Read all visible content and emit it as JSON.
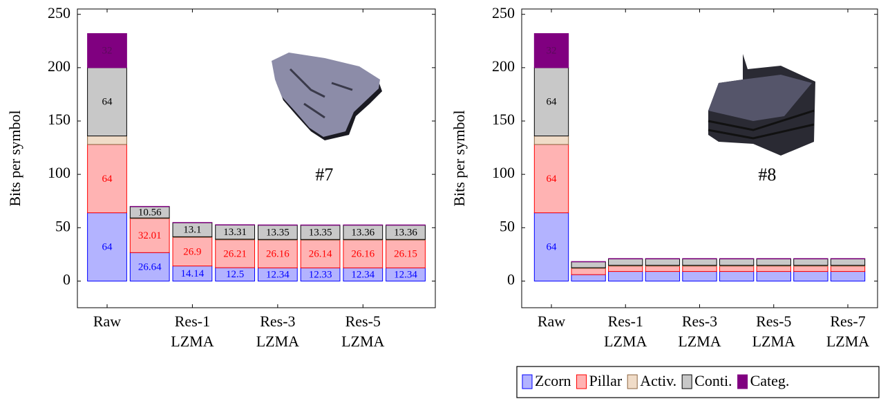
{
  "chart_data": [
    {
      "type": "stacked_bar",
      "y_label": "Bits per symbol",
      "annotation": "#7",
      "categories": [
        [
          "Raw"
        ],
        null,
        [
          "Res-1",
          "LZMA"
        ],
        null,
        [
          "Res-3",
          "LZMA"
        ],
        null,
        [
          "Res-5",
          "LZMA"
        ],
        null
      ],
      "series": [
        {
          "values": [
            64,
            26.64,
            14.14,
            12.5,
            12.34,
            12.33,
            12.34,
            12.34
          ]
        },
        {
          "values": [
            64,
            32.01,
            26.9,
            26.21,
            26.16,
            26.14,
            26.16,
            26.15
          ]
        },
        {
          "values": [
            8,
            0.5,
            0.5,
            0.5,
            0.5,
            0.5,
            0.5,
            0.5
          ]
        },
        {
          "values": [
            64,
            10.56,
            13.1,
            13.31,
            13.35,
            13.35,
            13.36,
            13.36
          ]
        },
        {
          "values": [
            32,
            0.3,
            0.3,
            0.3,
            0.3,
            0.3,
            0.3,
            0.3
          ]
        }
      ],
      "ylim": [
        -25,
        255
      ],
      "yticks": [
        0,
        50,
        100,
        150,
        200,
        250
      ]
    },
    {
      "type": "stacked_bar",
      "y_label": "Bits per symbol",
      "annotation": "#8",
      "categories": [
        [
          "Raw"
        ],
        null,
        [
          "Res-1",
          "LZMA"
        ],
        null,
        [
          "Res-3",
          "LZMA"
        ],
        null,
        [
          "Res-5",
          "LZMA"
        ],
        null,
        [
          "Res-7",
          "LZMA"
        ]
      ],
      "series": [
        {
          "values": [
            64,
            6,
            9,
            9,
            9,
            9,
            9,
            9,
            9
          ]
        },
        {
          "values": [
            64,
            6,
            5,
            5,
            5,
            5,
            5,
            5,
            5
          ]
        },
        {
          "values": [
            8,
            0.5,
            0.8,
            0.8,
            0.8,
            0.8,
            0.8,
            0.8,
            0.8
          ]
        },
        {
          "values": [
            64,
            5.5,
            6,
            6,
            6,
            6,
            6,
            6,
            6
          ]
        },
        {
          "values": [
            32,
            0.3,
            0.3,
            0.3,
            0.3,
            0.3,
            0.3,
            0.3,
            0.3
          ]
        }
      ],
      "ylim": [
        -25,
        255
      ],
      "yticks": [
        0,
        50,
        100,
        150,
        200,
        250
      ]
    }
  ],
  "legend": [
    {
      "name": "Zcorn",
      "color": "#b3b3ff",
      "stroke": "#0000ff",
      "label_color": "#0000ff"
    },
    {
      "name": "Pillar",
      "color": "#ffb3b3",
      "stroke": "#ff0000",
      "label_color": "#ff0000"
    },
    {
      "name": "Activ.",
      "color": "#f0dcc8",
      "stroke": "#8c6440",
      "label_color": "#000000"
    },
    {
      "name": "Conti.",
      "color": "#c8c8c8",
      "stroke": "#000000",
      "label_color": "#000000"
    },
    {
      "name": "Categ.",
      "color": "#800080",
      "stroke": "#800080",
      "label_color": "#5a0a5a"
    }
  ]
}
